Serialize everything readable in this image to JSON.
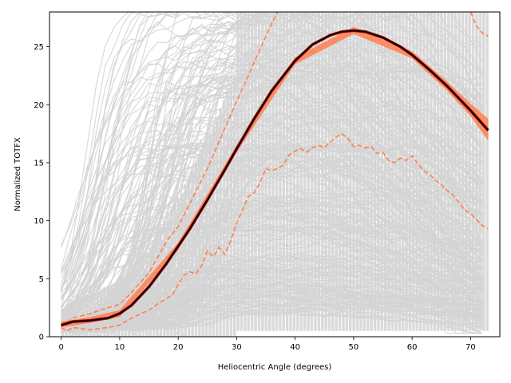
{
  "chart_data": {
    "type": "line",
    "title": "",
    "xlabel": "Heliocentric Angle (degrees)",
    "ylabel": "Normalized TOTFX",
    "xlim": [
      -2,
      75
    ],
    "ylim": [
      0,
      28
    ],
    "xticks": [
      0,
      10,
      20,
      30,
      40,
      50,
      60,
      70
    ],
    "yticks": [
      0,
      5,
      10,
      15,
      20,
      25
    ],
    "grid": false,
    "legend": "none",
    "colors": {
      "scatter": "#d3d3d3",
      "mean": "#000000",
      "band": "#ff7f50",
      "inner": "#8b0000",
      "percentile": "#ff7f50"
    },
    "series": [
      {
        "role": "mean",
        "x": [
          0,
          2,
          5,
          8,
          10,
          12,
          15,
          18,
          20,
          22,
          25,
          28,
          30,
          33,
          36,
          40,
          43,
          46,
          48,
          50,
          52,
          55,
          58,
          60,
          63,
          66,
          70,
          73
        ],
        "y": [
          1.0,
          1.3,
          1.4,
          1.6,
          2.0,
          2.7,
          4.3,
          6.3,
          7.8,
          9.3,
          11.8,
          14.4,
          16.2,
          18.8,
          21.2,
          23.8,
          25.2,
          26.0,
          26.3,
          26.4,
          26.3,
          25.8,
          25.0,
          24.3,
          23.0,
          21.6,
          19.5,
          17.8
        ]
      },
      {
        "role": "band-upper",
        "x": [
          0,
          5,
          10,
          20,
          30,
          40,
          50,
          60,
          66,
          70,
          73
        ],
        "y": [
          1.3,
          1.7,
          2.3,
          8.1,
          16.5,
          24.1,
          26.7,
          24.6,
          22.0,
          20.1,
          18.8
        ]
      },
      {
        "role": "band-lower",
        "x": [
          0,
          5,
          10,
          20,
          30,
          40,
          50,
          60,
          66,
          70,
          73
        ],
        "y": [
          0.8,
          1.2,
          1.7,
          7.5,
          15.9,
          23.5,
          26.1,
          24.0,
          21.2,
          19.0,
          16.9
        ]
      },
      {
        "role": "upper-percentile",
        "x": [
          0,
          2,
          5,
          8,
          10,
          12,
          15,
          18,
          20,
          22,
          25,
          28,
          30,
          32,
          34,
          36,
          37
        ],
        "y": [
          0.9,
          1.6,
          2.0,
          2.5,
          2.8,
          3.8,
          5.5,
          8.2,
          9.5,
          11.5,
          14.5,
          18.0,
          20.3,
          22.5,
          24.8,
          27.0,
          28.0
        ]
      },
      {
        "role": "upper-percentile-right",
        "x": [
          70,
          71,
          72,
          73
        ],
        "y": [
          28.0,
          26.8,
          26.2,
          25.9
        ]
      },
      {
        "role": "lower-percentile",
        "x": [
          0,
          1,
          2,
          5,
          8,
          10,
          12,
          15,
          17,
          19,
          20,
          21,
          22,
          23,
          24,
          25,
          26,
          27,
          28,
          29,
          30,
          31,
          32,
          33,
          34,
          35,
          36,
          37,
          38,
          39,
          40,
          41,
          42,
          43,
          44,
          45,
          46,
          47,
          48,
          49,
          50,
          51,
          52,
          53,
          54,
          55,
          56,
          57,
          58,
          59,
          60,
          61,
          62,
          63,
          64,
          65,
          66,
          67,
          68,
          69,
          70,
          71,
          72,
          73
        ],
        "y": [
          0.8,
          0.5,
          0.8,
          0.6,
          0.8,
          1.0,
          1.6,
          2.3,
          3.0,
          3.6,
          4.5,
          5.3,
          5.6,
          5.4,
          6.1,
          7.4,
          6.9,
          7.7,
          7.1,
          8.3,
          9.8,
          10.9,
          12.1,
          12.4,
          13.3,
          14.5,
          14.3,
          14.5,
          14.8,
          15.7,
          16.0,
          16.2,
          15.9,
          16.3,
          16.5,
          16.3,
          16.8,
          17.2,
          17.5,
          17.1,
          16.4,
          16.5,
          16.3,
          16.4,
          15.8,
          15.9,
          15.2,
          15.0,
          15.4,
          15.2,
          15.6,
          14.9,
          14.3,
          14.0,
          13.5,
          13.1,
          12.6,
          12.2,
          11.6,
          10.9,
          10.6,
          10.1,
          9.6,
          9.3
        ]
      }
    ]
  }
}
